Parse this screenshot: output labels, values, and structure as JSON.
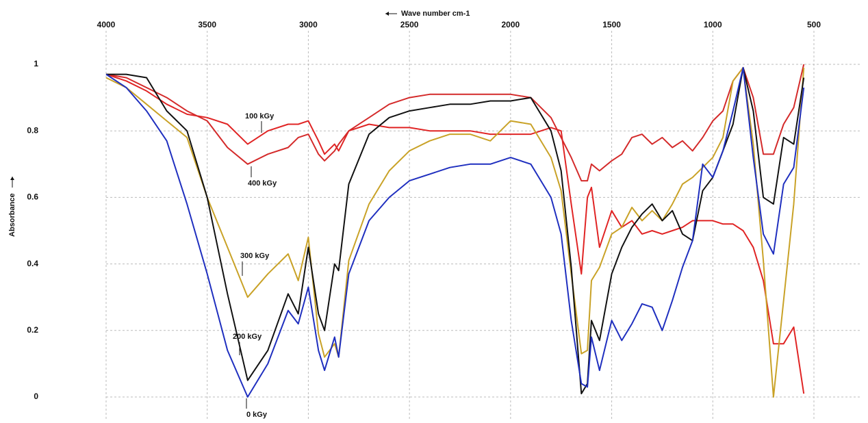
{
  "chart_data": {
    "type": "line",
    "x_label": "Wave number cm-1",
    "y_label": "Absorbance",
    "x": [
      4000,
      3900,
      3800,
      3700,
      3600,
      3500,
      3400,
      3300,
      3200,
      3100,
      3050,
      3000,
      2950,
      2920,
      2870,
      2850,
      2800,
      2700,
      2600,
      2500,
      2400,
      2300,
      2200,
      2100,
      2000,
      1900,
      1800,
      1750,
      1700,
      1650,
      1620,
      1600,
      1560,
      1500,
      1450,
      1400,
      1350,
      1300,
      1250,
      1200,
      1150,
      1100,
      1050,
      1000,
      950,
      900,
      850,
      800,
      750,
      700,
      650,
      600,
      550
    ],
    "series": [
      {
        "name": "100 kGy",
        "color": "#e02424",
        "values": [
          0.97,
          0.95,
          0.92,
          0.88,
          0.85,
          0.84,
          0.82,
          0.76,
          0.8,
          0.82,
          0.82,
          0.83,
          0.77,
          0.73,
          0.76,
          0.74,
          0.8,
          0.82,
          0.81,
          0.81,
          0.8,
          0.8,
          0.8,
          0.79,
          0.79,
          0.79,
          0.81,
          0.8,
          0.58,
          0.37,
          0.6,
          0.63,
          0.45,
          0.56,
          0.51,
          0.53,
          0.49,
          0.5,
          0.49,
          0.5,
          0.51,
          0.53,
          0.53,
          0.53,
          0.52,
          0.52,
          0.5,
          0.45,
          0.35,
          0.16,
          0.16,
          0.21,
          0.01
        ]
      },
      {
        "name": "400 kGy",
        "color": "#d42a2a",
        "values": [
          0.97,
          0.96,
          0.93,
          0.9,
          0.86,
          0.83,
          0.75,
          0.7,
          0.73,
          0.75,
          0.78,
          0.79,
          0.73,
          0.71,
          0.74,
          0.76,
          0.8,
          0.84,
          0.88,
          0.9,
          0.91,
          0.91,
          0.91,
          0.91,
          0.91,
          0.9,
          0.84,
          0.78,
          0.72,
          0.65,
          0.65,
          0.7,
          0.68,
          0.71,
          0.73,
          0.78,
          0.79,
          0.76,
          0.78,
          0.75,
          0.77,
          0.74,
          0.78,
          0.83,
          0.86,
          0.95,
          0.99,
          0.9,
          0.73,
          0.73,
          0.82,
          0.87,
          1.0
        ]
      },
      {
        "name": "300 kGy",
        "color": "#c9a227",
        "values": [
          0.96,
          0.93,
          0.88,
          0.83,
          0.78,
          0.6,
          0.45,
          0.3,
          0.37,
          0.43,
          0.35,
          0.48,
          0.19,
          0.12,
          0.16,
          0.12,
          0.41,
          0.58,
          0.68,
          0.74,
          0.77,
          0.79,
          0.79,
          0.77,
          0.83,
          0.82,
          0.72,
          0.62,
          0.37,
          0.13,
          0.14,
          0.35,
          0.39,
          0.49,
          0.51,
          0.57,
          0.53,
          0.56,
          0.53,
          0.58,
          0.64,
          0.66,
          0.69,
          0.72,
          0.78,
          0.95,
          0.99,
          0.76,
          0.41,
          0.0,
          0.29,
          0.58,
          0.99
        ]
      },
      {
        "name": "200 kGy",
        "color": "#111111",
        "values": [
          0.97,
          0.97,
          0.96,
          0.86,
          0.8,
          0.6,
          0.31,
          0.05,
          0.14,
          0.31,
          0.25,
          0.45,
          0.25,
          0.2,
          0.4,
          0.38,
          0.64,
          0.79,
          0.84,
          0.86,
          0.87,
          0.88,
          0.88,
          0.89,
          0.89,
          0.9,
          0.8,
          0.68,
          0.39,
          0.01,
          0.04,
          0.23,
          0.17,
          0.37,
          0.45,
          0.51,
          0.55,
          0.58,
          0.53,
          0.56,
          0.49,
          0.47,
          0.62,
          0.66,
          0.74,
          0.82,
          0.99,
          0.86,
          0.6,
          0.58,
          0.78,
          0.76,
          0.96
        ]
      },
      {
        "name": "0 kGy",
        "color": "#1f2fbf",
        "values": [
          0.97,
          0.93,
          0.86,
          0.77,
          0.58,
          0.37,
          0.14,
          0.0,
          0.1,
          0.26,
          0.22,
          0.33,
          0.14,
          0.08,
          0.18,
          0.12,
          0.37,
          0.53,
          0.6,
          0.65,
          0.67,
          0.69,
          0.7,
          0.7,
          0.72,
          0.7,
          0.6,
          0.49,
          0.23,
          0.04,
          0.03,
          0.18,
          0.08,
          0.23,
          0.17,
          0.22,
          0.28,
          0.27,
          0.2,
          0.29,
          0.39,
          0.47,
          0.7,
          0.66,
          0.74,
          0.86,
          0.99,
          0.72,
          0.49,
          0.43,
          0.64,
          0.69,
          0.93
        ]
      }
    ],
    "xlim": [
      4000,
      500
    ],
    "xticks": [
      4000,
      3500,
      3000,
      2500,
      2000,
      1500,
      1000,
      500
    ],
    "ylim": [
      -0.07,
      1.07
    ],
    "yticks": [
      0,
      0.2,
      0.4,
      0.6,
      0.8,
      1
    ],
    "grid": true
  }
}
